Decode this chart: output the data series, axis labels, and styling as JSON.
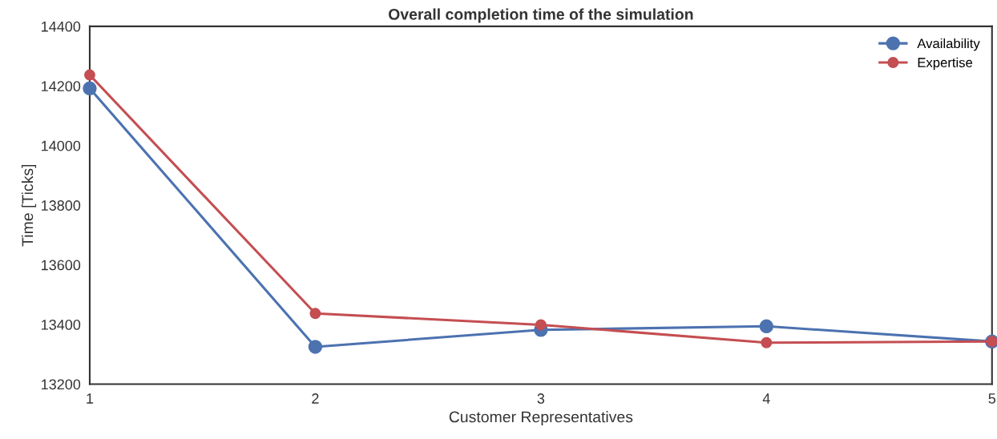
{
  "chart_data": {
    "type": "line",
    "title": "Overall completion time of the simulation",
    "xlabel": "Customer Representatives",
    "ylabel": "Time [Ticks]",
    "x": [
      1,
      2,
      3,
      4,
      5
    ],
    "series": [
      {
        "name": "Availability",
        "color": "#4c72b0",
        "values": [
          14192,
          13325,
          13382,
          13394,
          13343
        ]
      },
      {
        "name": "Expertise",
        "color": "#c44e52",
        "values": [
          14237,
          13437,
          13399,
          13339,
          13343
        ]
      }
    ],
    "xlim": [
      1,
      5
    ],
    "xticks": [
      1,
      2,
      3,
      4,
      5
    ],
    "ylim": [
      13200,
      14400
    ],
    "yticks": [
      13200,
      13400,
      13600,
      13800,
      14000,
      14200,
      14400
    ],
    "grid": false,
    "legend": "top right",
    "marker": "circle",
    "line_style": "solid"
  }
}
